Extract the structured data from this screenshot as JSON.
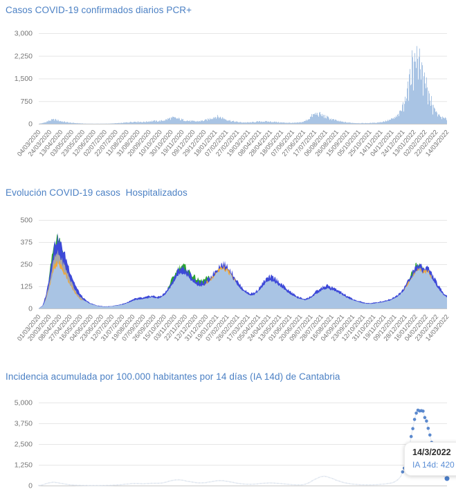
{
  "page": {
    "background": "#ffffff",
    "accent_blue": "#4b80c4"
  },
  "chart_data": [
    {
      "id": "pcr",
      "type": "bar",
      "title": "Casos COVID-19 confirmados diarios PCR+",
      "bar_color": "#a9c4e4",
      "ylim": [
        0,
        3000
      ],
      "ytick_values": [
        0,
        750,
        1500,
        2250,
        3000
      ],
      "yticks": [
        "0",
        "750",
        "1,500",
        "2,250",
        "3,000"
      ],
      "x_tick_labels": [
        "04/03/2020",
        "24/03/2020",
        "13/04/2020",
        "03/05/2020",
        "23/05/2020",
        "12/06/2020",
        "02/07/2020",
        "22/07/2020",
        "11/08/2020",
        "31/08/2020",
        "20/09/2020",
        "10/10/2020",
        "30/10/2020",
        "19/11/2020",
        "09/12/2020",
        "29/12/2020",
        "18/01/2021",
        "07/02/2021",
        "27/02/2021",
        "19/03/2021",
        "08/04/2021",
        "28/04/2021",
        "18/05/2021",
        "07/06/2021",
        "27/06/2021",
        "17/07/2021",
        "06/08/2021",
        "26/08/2021",
        "15/09/2021",
        "05/10/2021",
        "25/10/2021",
        "14/11/2021",
        "04/12/2021",
        "24/12/2021",
        "13/01/2022",
        "02/02/2022",
        "22/02/2022",
        "14/03/2022"
      ],
      "sample_interval_days": 7,
      "values": [
        5,
        30,
        90,
        150,
        180,
        140,
        100,
        70,
        50,
        35,
        25,
        15,
        10,
        8,
        5,
        4,
        5,
        8,
        10,
        14,
        25,
        30,
        45,
        60,
        80,
        90,
        85,
        75,
        90,
        110,
        120,
        110,
        130,
        170,
        230,
        250,
        220,
        180,
        150,
        120,
        110,
        100,
        120,
        140,
        180,
        260,
        300,
        280,
        230,
        170,
        120,
        90,
        70,
        60,
        55,
        60,
        75,
        90,
        100,
        95,
        90,
        85,
        70,
        55,
        50,
        45,
        40,
        45,
        60,
        100,
        200,
        340,
        420,
        400,
        330,
        260,
        200,
        150,
        110,
        80,
        60,
        45,
        35,
        30,
        28,
        30,
        35,
        40,
        55,
        75,
        110,
        150,
        210,
        290,
        480,
        800,
        1400,
        2200,
        2550,
        2350,
        1850,
        1250,
        820,
        520,
        340,
        240,
        200
      ]
    },
    {
      "id": "hosp",
      "type": "area",
      "title": "Evolución COVID-19 casos  Hospitalizados",
      "ylim": [
        0,
        500
      ],
      "ytick_values": [
        0,
        125,
        250,
        375,
        500
      ],
      "yticks": [
        "0",
        "125",
        "250",
        "375",
        "500"
      ],
      "x_tick_labels": [
        "01/03/2020",
        "20/03/2020",
        "08/04/2020",
        "27/04/2020",
        "16/05/2020",
        "04/06/2020",
        "23/06/2020",
        "12/07/2020",
        "31/07/2020",
        "19/08/2020",
        "07/09/2020",
        "26/09/2020",
        "15/10/2020",
        "03/11/2020",
        "22/11/2020",
        "12/12/2020",
        "31/12/2020",
        "19/01/2021",
        "07/02/2021",
        "26/02/2021",
        "17/03/2021",
        "05/04/2021",
        "24/04/2021",
        "13/05/2021",
        "01/06/2021",
        "20/06/2021",
        "09/07/2021",
        "28/07/2021",
        "16/08/2021",
        "04/09/2021",
        "23/09/2021",
        "12/10/2021",
        "31/10/2021",
        "19/11/2021",
        "09/12/2021",
        "28/12/2021",
        "16/01/2022",
        "04/02/2022",
        "23/02/2022",
        "14/03/2022"
      ],
      "sample_interval_days": 7,
      "series": [
        {
          "name": "serie-verde",
          "color": "#2ba52e",
          "sparse": {
            "1": 0,
            "2": 60,
            "3": 228,
            "4": 368,
            "5": 408,
            "6": 358,
            "7": 260,
            "8": 150,
            "9": 0,
            "33": 80,
            "34": 140,
            "35": 180,
            "36": 220,
            "37": 247,
            "38": 237,
            "39": 212,
            "40": 187,
            "41": 167,
            "42": 157,
            "43": 162,
            "44": 177,
            "45": 150,
            "46": 0,
            "96": 150,
            "97": 206,
            "98": 246,
            "99": 256,
            "100": 220,
            "101": 150,
            "102": 0
          }
        },
        {
          "name": "serie-azul",
          "color": "#3d49d8",
          "values": [
            2,
            15,
            90,
            220,
            360,
            400,
            350,
            290,
            220,
            160,
            110,
            75,
            50,
            35,
            25,
            18,
            14,
            12,
            12,
            14,
            18,
            22,
            28,
            35,
            45,
            55,
            60,
            60,
            65,
            72,
            70,
            65,
            75,
            95,
            130,
            170,
            210,
            235,
            225,
            200,
            175,
            155,
            145,
            150,
            165,
            190,
            220,
            245,
            255,
            240,
            210,
            175,
            140,
            115,
            95,
            85,
            90,
            110,
            140,
            165,
            180,
            175,
            160,
            140,
            120,
            100,
            85,
            70,
            60,
            55,
            60,
            75,
            95,
            110,
            125,
            130,
            120,
            110,
            100,
            85,
            70,
            60,
            50,
            42,
            36,
            32,
            30,
            32,
            36,
            40,
            45,
            52,
            60,
            75,
            95,
            125,
            160,
            200,
            240,
            250,
            230,
            235,
            200,
            160,
            120,
            90,
            75
          ]
        },
        {
          "name": "serie-gris",
          "color": "#a8a8a8",
          "sparse": {
            "1": 0,
            "2": 70,
            "3": 172,
            "4": 281,
            "5": 312,
            "6": 273,
            "7": 226,
            "8": 172,
            "9": 125,
            "10": 86,
            "11": 59,
            "12": 40,
            "13": 0,
            "96": 0,
            "97": 182,
            "98": 217,
            "99": 226,
            "100": 208,
            "101": 212,
            "102": 182,
            "103": 0
          }
        },
        {
          "name": "serie-naranja",
          "color": "#efa83c",
          "sparse": {
            "1": 0,
            "2": 59,
            "3": 145,
            "4": 238,
            "5": 264,
            "6": 231,
            "7": 191,
            "8": 145,
            "9": 106,
            "10": 73,
            "11": 50,
            "12": 34,
            "13": 0,
            "42": 0,
            "43": 135,
            "44": 152,
            "45": 173,
            "46": 199,
            "47": 221,
            "48": 230,
            "49": 215,
            "50": 188,
            "51": 157,
            "52": 0,
            "94": 0,
            "95": 112,
            "96": 147,
            "97": 178,
            "98": 213,
            "99": 222,
            "100": 204,
            "101": 208,
            "102": 175,
            "103": 0
          }
        },
        {
          "name": "serie-azul-claro",
          "color": "#a9c4e4",
          "values": [
            2,
            13,
            56,
            136,
            223,
            248,
            217,
            180,
            136,
            99,
            68,
            47,
            44,
            30,
            22,
            16,
            12,
            10,
            10,
            12,
            16,
            19,
            24,
            30,
            39,
            48,
            52,
            52,
            57,
            63,
            61,
            57,
            65,
            83,
            113,
            148,
            183,
            204,
            196,
            174,
            152,
            135,
            126,
            130,
            144,
            165,
            191,
            213,
            222,
            209,
            183,
            152,
            122,
            100,
            83,
            74,
            78,
            96,
            122,
            144,
            157,
            152,
            139,
            122,
            104,
            87,
            74,
            61,
            52,
            48,
            52,
            65,
            83,
            96,
            109,
            113,
            104,
            96,
            87,
            74,
            61,
            52,
            44,
            37,
            31,
            28,
            26,
            28,
            31,
            35,
            39,
            45,
            52,
            65,
            83,
            109,
            139,
            174,
            209,
            218,
            200,
            204,
            174,
            139,
            104,
            78,
            65
          ]
        }
      ]
    },
    {
      "id": "ia14d",
      "type": "line",
      "title": "Incidencia acumulada por 100.000 habitantes por 14 días (IA 14d) de Cantabria",
      "line_color": "#e9edf3",
      "dot_color": "#5b89ce",
      "active_dot_color": "#4c7fca",
      "ylim": [
        0,
        5000
      ],
      "ytick_values": [
        0,
        1250,
        2500,
        3750,
        5000
      ],
      "yticks": [
        "0",
        "1,250",
        "2,500",
        "3,750",
        "5,000"
      ],
      "sample_interval_days": 7,
      "values": [
        10,
        40,
        120,
        180,
        200,
        170,
        120,
        80,
        50,
        30,
        20,
        12,
        8,
        6,
        5,
        5,
        6,
        8,
        12,
        20,
        35,
        50,
        70,
        90,
        110,
        120,
        115,
        105,
        115,
        130,
        140,
        135,
        150,
        200,
        280,
        330,
        350,
        330,
        290,
        240,
        200,
        170,
        160,
        170,
        200,
        240,
        280,
        300,
        290,
        260,
        210,
        160,
        120,
        95,
        80,
        75,
        85,
        105,
        130,
        150,
        160,
        150,
        130,
        110,
        90,
        70,
        55,
        45,
        45,
        60,
        150,
        280,
        420,
        520,
        560,
        520,
        440,
        350,
        260,
        190,
        140,
        100,
        75,
        60,
        50,
        45,
        45,
        50,
        60,
        75,
        95,
        130,
        180,
        300,
        550,
        1100,
        2100,
        3300,
        4300,
        4600,
        4350,
        3600,
        2600,
        1700,
        1000,
        600,
        420
      ],
      "tooltip": {
        "date": "14/3/2022",
        "value_label": "IA 14d: 420"
      }
    }
  ]
}
